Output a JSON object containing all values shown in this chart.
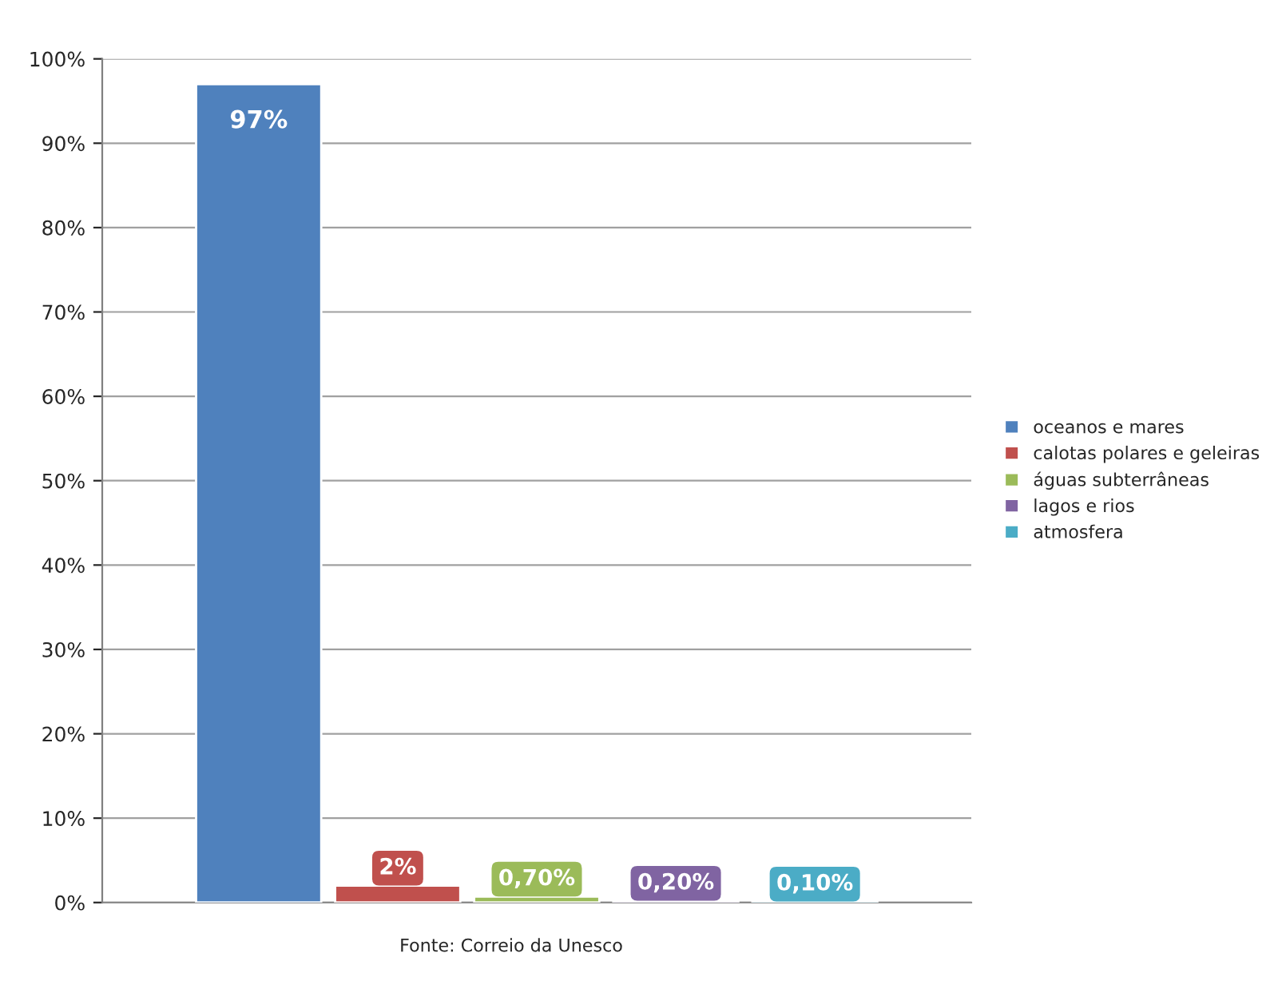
{
  "chart_data": {
    "type": "bar",
    "categories": [
      null
    ],
    "series": [
      {
        "name": "oceanos e mares",
        "color": "#4f81bd",
        "values": [
          97
        ],
        "value_labels": [
          "97%"
        ]
      },
      {
        "name": "calotas polares e geleiras",
        "color": "#c0504d",
        "values": [
          2
        ],
        "value_labels": [
          "2%"
        ]
      },
      {
        "name": "águas subterrâneas",
        "color": "#9bbb59",
        "values": [
          0.7
        ],
        "value_labels": [
          "0,70%"
        ]
      },
      {
        "name": "lagos e rios",
        "color": "#8064a2",
        "values": [
          0.2
        ],
        "value_labels": [
          "0,20%"
        ]
      },
      {
        "name": "atmosfera",
        "color": "#4bacc6",
        "values": [
          0.1
        ],
        "value_labels": [
          "0,10%"
        ]
      }
    ],
    "ylim": [
      0,
      100
    ],
    "yticks": [
      {
        "value": 0,
        "label": "0%"
      },
      {
        "value": 10,
        "label": "10%"
      },
      {
        "value": 20,
        "label": "20%"
      },
      {
        "value": 30,
        "label": "30%"
      },
      {
        "value": 40,
        "label": "40%"
      },
      {
        "value": 50,
        "label": "50%"
      },
      {
        "value": 60,
        "label": "60%"
      },
      {
        "value": 70,
        "label": "70%"
      },
      {
        "value": 80,
        "label": "80%"
      },
      {
        "value": 90,
        "label": "90%"
      },
      {
        "value": 100,
        "label": "100%"
      }
    ],
    "grid": "y",
    "legend": "right",
    "annotations": [
      "Fonte: Correio da Unesco"
    ]
  }
}
